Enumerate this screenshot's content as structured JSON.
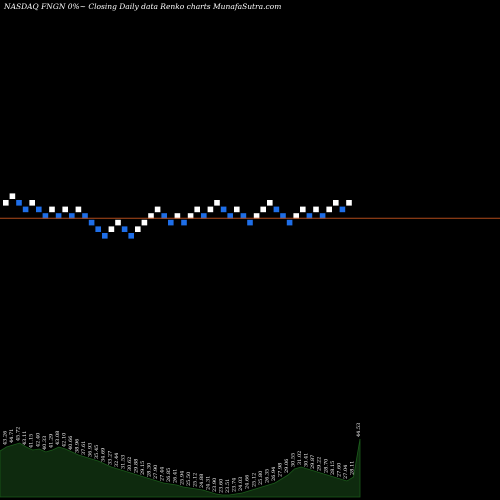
{
  "header": {
    "title": "NASDAQ FNGN  0%~  Closing Daily data  Renko  charts MunafaSutra.com"
  },
  "colors": {
    "background": "#000000",
    "up_brick": "#ffffff",
    "down_brick": "#1e6ee8",
    "reference_line": "#b04a1a",
    "volume_fill": "#0e2a0e",
    "volume_line": "#1a5a1a",
    "label": "#ffffff"
  },
  "chart_data": {
    "type": "renko",
    "title": "NASDAQ FNGN  0%~  Closing Daily data  Renko  charts MunafaSutra.com",
    "bricks": [
      {
        "level": 0,
        "dir": "up"
      },
      {
        "level": 1,
        "dir": "up"
      },
      {
        "level": 0,
        "dir": "down"
      },
      {
        "level": -1,
        "dir": "down"
      },
      {
        "level": 0,
        "dir": "up"
      },
      {
        "level": -1,
        "dir": "down"
      },
      {
        "level": -2,
        "dir": "down"
      },
      {
        "level": -1,
        "dir": "up"
      },
      {
        "level": -2,
        "dir": "down"
      },
      {
        "level": -1,
        "dir": "up"
      },
      {
        "level": -2,
        "dir": "down"
      },
      {
        "level": -1,
        "dir": "up"
      },
      {
        "level": -2,
        "dir": "down"
      },
      {
        "level": -3,
        "dir": "down"
      },
      {
        "level": -4,
        "dir": "down"
      },
      {
        "level": -5,
        "dir": "down"
      },
      {
        "level": -4,
        "dir": "up"
      },
      {
        "level": -3,
        "dir": "up"
      },
      {
        "level": -4,
        "dir": "down"
      },
      {
        "level": -5,
        "dir": "down"
      },
      {
        "level": -4,
        "dir": "up"
      },
      {
        "level": -3,
        "dir": "up"
      },
      {
        "level": -2,
        "dir": "up"
      },
      {
        "level": -1,
        "dir": "up"
      },
      {
        "level": -2,
        "dir": "down"
      },
      {
        "level": -3,
        "dir": "down"
      },
      {
        "level": -2,
        "dir": "up"
      },
      {
        "level": -3,
        "dir": "down"
      },
      {
        "level": -2,
        "dir": "up"
      },
      {
        "level": -1,
        "dir": "up"
      },
      {
        "level": -2,
        "dir": "down"
      },
      {
        "level": -1,
        "dir": "up"
      },
      {
        "level": 0,
        "dir": "up"
      },
      {
        "level": -1,
        "dir": "down"
      },
      {
        "level": -2,
        "dir": "down"
      },
      {
        "level": -1,
        "dir": "up"
      },
      {
        "level": -2,
        "dir": "down"
      },
      {
        "level": -3,
        "dir": "down"
      },
      {
        "level": -2,
        "dir": "up"
      },
      {
        "level": -1,
        "dir": "up"
      },
      {
        "level": 0,
        "dir": "up"
      },
      {
        "level": -1,
        "dir": "down"
      },
      {
        "level": -2,
        "dir": "down"
      },
      {
        "level": -3,
        "dir": "down"
      },
      {
        "level": -2,
        "dir": "up"
      },
      {
        "level": -1,
        "dir": "up"
      },
      {
        "level": -2,
        "dir": "down"
      },
      {
        "level": -1,
        "dir": "up"
      },
      {
        "level": -2,
        "dir": "down"
      },
      {
        "level": -1,
        "dir": "up"
      },
      {
        "level": 0,
        "dir": "up"
      },
      {
        "level": -1,
        "dir": "down"
      },
      {
        "level": 0,
        "dir": "up"
      }
    ],
    "reference_level": -2,
    "volume": {
      "values": [
        46,
        50,
        52,
        54,
        50,
        47,
        48,
        45,
        47,
        50,
        48,
        45,
        42,
        40,
        38,
        36,
        33,
        30,
        28,
        26,
        24,
        22,
        20,
        18,
        16,
        14,
        13,
        12,
        10,
        9,
        8,
        7,
        5,
        3,
        2,
        2,
        3,
        4,
        6,
        8,
        10,
        12,
        14,
        18,
        22,
        28,
        30,
        28,
        26,
        24,
        22,
        20,
        18,
        16,
        20,
        58
      ],
      "labels": [
        "45.07",
        "43.26",
        "44.71",
        "45.72",
        "43.11",
        "41.15",
        "42.40",
        "40.33",
        "41.29",
        "43.08",
        "42.10",
        "40.66",
        "38.96",
        "37.61",
        "36.93",
        "35.45",
        "34.69",
        "33.27",
        "32.44",
        "31.53",
        "30.62",
        "29.88",
        "29.15",
        "28.30",
        "27.90",
        "27.44",
        "26.85",
        "26.41",
        "25.94",
        "25.50",
        "25.12",
        "24.88",
        "24.31",
        "23.90",
        "23.60",
        "23.51",
        "23.74",
        "24.03",
        "24.66",
        "25.12",
        "25.80",
        "26.35",
        "26.94",
        "27.98",
        "29.06",
        "30.55",
        "31.02",
        "30.41",
        "29.87",
        "29.22",
        "28.70",
        "28.15",
        "27.60",
        "27.04",
        "28.11",
        "44.53"
      ]
    }
  }
}
